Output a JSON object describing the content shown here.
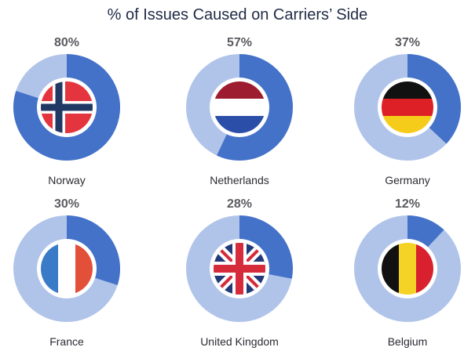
{
  "chart_data": {
    "type": "pie",
    "title": "% of Issues Caused on Carriers’ Side",
    "categories": [
      "Norway",
      "Netherlands",
      "Germany",
      "France",
      "United Kingdom",
      "Belgium"
    ],
    "values": [
      80,
      57,
      37,
      30,
      28,
      12
    ],
    "value_labels": [
      "80%",
      "57%",
      "37%",
      "30%",
      "28%",
      "12%"
    ],
    "flag_icons": [
      "norway-flag-icon",
      "netherlands-flag-icon",
      "germany-flag-icon",
      "france-flag-icon",
      "united-kingdom-flag-icon",
      "belgium-flag-icon"
    ],
    "colors": {
      "value": "#4472c9",
      "remainder": "#b0c4ea"
    }
  }
}
